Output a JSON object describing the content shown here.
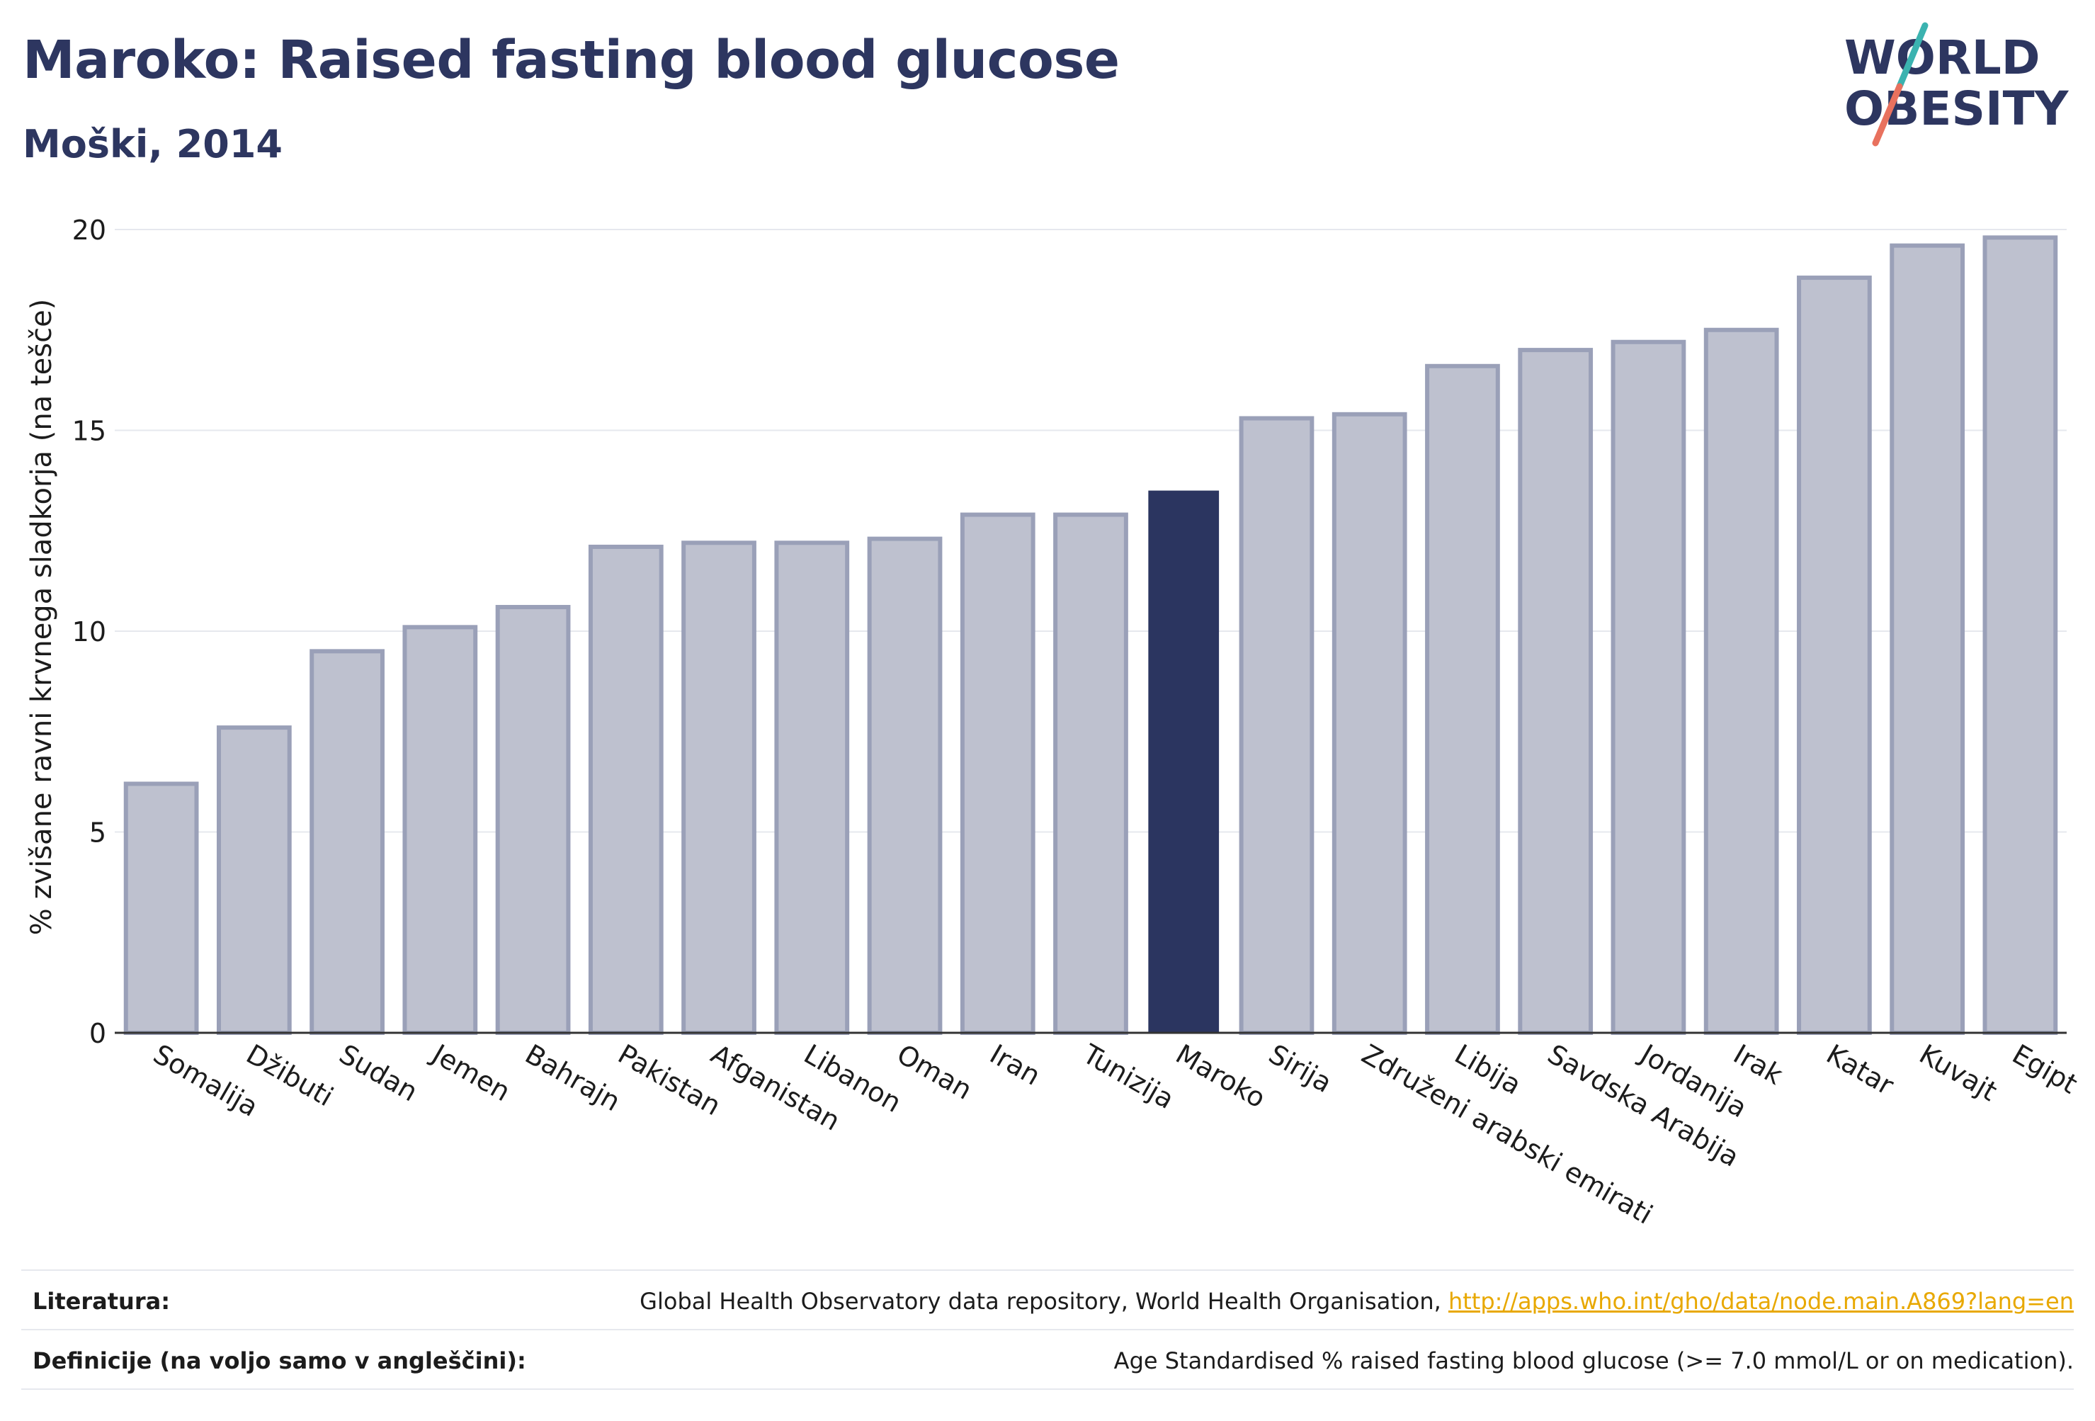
{
  "header": {
    "title": "Maroko: Raised fasting blood glucose",
    "subtitle": "Moški, 2014"
  },
  "logo": {
    "text_line1": "WORLD",
    "text_line2": "OBESITY",
    "colors": {
      "text": "#2d3660",
      "slash_top": "#3bb3b0",
      "slash_bottom": "#e8715e"
    }
  },
  "chart_data": {
    "type": "bar",
    "title": "",
    "xlabel": "",
    "ylabel": "% zvišane ravni krvnega sladkorja (na tešče)",
    "ylim": [
      0,
      20
    ],
    "yticks": [
      0,
      5,
      10,
      15,
      20
    ],
    "grid": true,
    "highlight": "Maroko",
    "colors": {
      "bar": "#bec1cf",
      "bar_edge": "#9aa0b8",
      "highlight": "#2b3560",
      "axis": "#333333",
      "grid": "#e6e8ee"
    },
    "categories": [
      "Somalija",
      "Džibuti",
      "Sudan",
      "Jemen",
      "Bahrajn",
      "Pakistan",
      "Afganistan",
      "Libanon",
      "Oman",
      "Iran",
      "Tunizija",
      "Maroko",
      "Sirija",
      "Združeni arabski emirati",
      "Libija",
      "Savdska Arabija",
      "Jordanija",
      "Irak",
      "Katar",
      "Kuvajt",
      "Egipt"
    ],
    "values": [
      6.2,
      7.6,
      9.5,
      10.1,
      10.6,
      12.1,
      12.2,
      12.2,
      12.3,
      12.9,
      12.9,
      13.5,
      15.3,
      15.4,
      16.6,
      17.0,
      17.2,
      17.5,
      18.8,
      19.6,
      19.8
    ]
  },
  "footer": {
    "literature_label": "Literatura:",
    "literature_text": "Global Health Observatory data repository, World Health Organisation, ",
    "literature_link": "http://apps.who.int/gho/data/node.main.A869?lang=en",
    "definitions_label": "Definicije (na voljo samo v angleščini):",
    "definitions_text": "Age Standardised % raised fasting blood glucose (>= 7.0 mmol/L or on medication)."
  }
}
